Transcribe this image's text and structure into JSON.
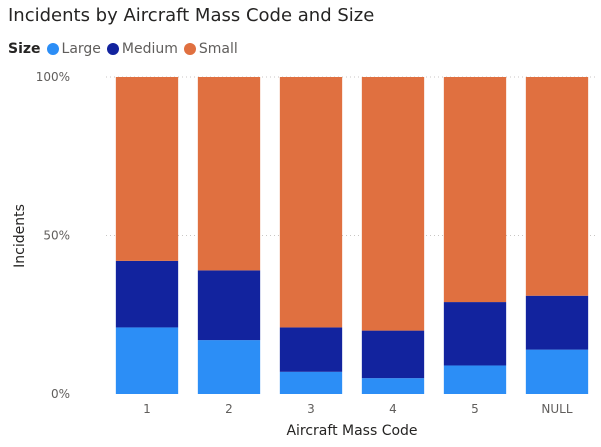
{
  "chart_data": {
    "type": "bar",
    "stacked": "100%",
    "title": "Incidents by Aircraft Mass Code and Size",
    "legend_title": "Size",
    "legend_position": "top-left",
    "xlabel": "Aircraft Mass Code",
    "ylabel": "Incidents",
    "categories": [
      "1",
      "2",
      "3",
      "4",
      "5",
      "NULL"
    ],
    "ylim": [
      0,
      100
    ],
    "yticks": [
      {
        "value": 0,
        "label": "0%"
      },
      {
        "value": 50,
        "label": "50%"
      },
      {
        "value": 100,
        "label": "100%"
      }
    ],
    "grid": true,
    "series": [
      {
        "name": "Large",
        "color": "#2C8EF6",
        "values": [
          21,
          17,
          7,
          5,
          9,
          14
        ]
      },
      {
        "name": "Medium",
        "color": "#12239E",
        "values": [
          21,
          22,
          14,
          15,
          20,
          17
        ]
      },
      {
        "name": "Small",
        "color": "#E07040",
        "values": [
          58,
          61,
          79,
          80,
          71,
          69
        ]
      }
    ]
  }
}
